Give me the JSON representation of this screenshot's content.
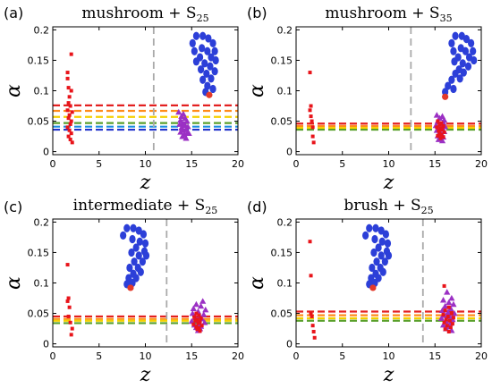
{
  "chart_data": [
    {
      "type": "scatter",
      "panel_label": "(a)",
      "title_main": "mushroom + S",
      "title_sub": "25",
      "xlabel": "z",
      "ylabel": "α",
      "xlim": [
        0,
        20
      ],
      "ylim": [
        -0.005,
        0.205
      ],
      "xticks": [
        0,
        5,
        10,
        15,
        20
      ],
      "yticks": [
        0,
        0.05,
        0.1,
        0.15,
        0.2
      ],
      "vline_x": 10.9,
      "hlines": [
        {
          "y": 0.076,
          "color": "#e32020"
        },
        {
          "y": 0.067,
          "color": "#ff8c1a"
        },
        {
          "y": 0.057,
          "color": "#f5d000"
        },
        {
          "y": 0.047,
          "color": "#5aa02c"
        },
        {
          "y": 0.041,
          "color": "#1e8fe0"
        },
        {
          "y": 0.036,
          "color": "#2233cc"
        }
      ],
      "blue_points": [
        [
          15.5,
          0.19
        ],
        [
          16.2,
          0.19
        ],
        [
          16.8,
          0.186
        ],
        [
          15.1,
          0.178
        ],
        [
          17.3,
          0.178
        ],
        [
          16.1,
          0.17
        ],
        [
          15.3,
          0.165
        ],
        [
          16.7,
          0.165
        ],
        [
          17.5,
          0.165
        ],
        [
          15.9,
          0.155
        ],
        [
          17.1,
          0.155
        ],
        [
          15.5,
          0.148
        ],
        [
          16.4,
          0.145
        ],
        [
          17.6,
          0.15
        ],
        [
          16.0,
          0.135
        ],
        [
          17.0,
          0.14
        ],
        [
          16.6,
          0.128
        ],
        [
          17.5,
          0.132
        ],
        [
          16.2,
          0.118
        ],
        [
          17.1,
          0.12
        ],
        [
          16.7,
          0.108
        ],
        [
          17.3,
          0.103
        ],
        [
          16.5,
          0.098
        ]
      ],
      "red_big_points": [
        [
          16.9,
          0.093
        ]
      ],
      "triangle_points": [
        [
          13.6,
          0.065
        ],
        [
          14.1,
          0.062
        ],
        [
          13.9,
          0.058
        ],
        [
          14.3,
          0.055
        ],
        [
          13.8,
          0.052
        ],
        [
          14.5,
          0.05
        ],
        [
          14.0,
          0.047
        ],
        [
          13.7,
          0.045
        ],
        [
          14.2,
          0.043
        ],
        [
          14.6,
          0.041
        ],
        [
          13.9,
          0.039
        ],
        [
          14.4,
          0.037
        ],
        [
          14.1,
          0.035
        ],
        [
          13.8,
          0.032
        ],
        [
          14.5,
          0.03
        ],
        [
          14.2,
          0.028
        ],
        [
          14.0,
          0.025
        ],
        [
          14.4,
          0.022
        ],
        [
          14.7,
          0.03
        ],
        [
          14.2,
          0.046
        ]
      ],
      "square_points": [
        [
          2.0,
          0.16
        ],
        [
          1.6,
          0.13
        ],
        [
          1.6,
          0.12
        ],
        [
          1.7,
          0.105
        ],
        [
          2.0,
          0.1
        ],
        [
          1.8,
          0.09
        ],
        [
          1.7,
          0.08
        ],
        [
          1.9,
          0.075
        ],
        [
          1.6,
          0.068
        ],
        [
          2.1,
          0.065
        ],
        [
          1.8,
          0.06
        ],
        [
          1.7,
          0.055
        ],
        [
          2.0,
          0.05
        ],
        [
          1.9,
          0.045
        ],
        [
          1.6,
          0.04
        ],
        [
          1.8,
          0.035
        ],
        [
          2.0,
          0.03
        ],
        [
          1.7,
          0.025
        ],
        [
          1.9,
          0.02
        ],
        [
          2.1,
          0.015
        ]
      ]
    },
    {
      "type": "scatter",
      "panel_label": "(b)",
      "title_main": "mushroom + S",
      "title_sub": "35",
      "xlabel": "z",
      "ylabel": "α",
      "xlim": [
        0,
        20
      ],
      "ylim": [
        -0.005,
        0.205
      ],
      "xticks": [
        0,
        5,
        10,
        15,
        20
      ],
      "yticks": [
        0,
        0.05,
        0.1,
        0.15,
        0.2
      ],
      "vline_x": 12.4,
      "hlines": [
        {
          "y": 0.046,
          "color": "#e32020"
        },
        {
          "y": 0.042,
          "color": "#ff8c1a"
        },
        {
          "y": 0.039,
          "color": "#f5d000"
        },
        {
          "y": 0.036,
          "color": "#5aa02c"
        }
      ],
      "blue_points": [
        [
          17.2,
          0.19
        ],
        [
          17.9,
          0.19
        ],
        [
          18.4,
          0.185
        ],
        [
          16.8,
          0.178
        ],
        [
          18.9,
          0.178
        ],
        [
          17.8,
          0.17
        ],
        [
          17.0,
          0.165
        ],
        [
          18.3,
          0.165
        ],
        [
          19.1,
          0.165
        ],
        [
          17.5,
          0.155
        ],
        [
          18.7,
          0.155
        ],
        [
          17.1,
          0.148
        ],
        [
          18.0,
          0.145
        ],
        [
          19.2,
          0.15
        ],
        [
          17.6,
          0.135
        ],
        [
          18.6,
          0.14
        ],
        [
          17.2,
          0.128
        ],
        [
          18.1,
          0.13
        ],
        [
          16.8,
          0.118
        ],
        [
          17.7,
          0.12
        ],
        [
          16.4,
          0.108
        ],
        [
          17.0,
          0.103
        ],
        [
          16.1,
          0.098
        ]
      ],
      "red_big_points": [
        [
          16.1,
          0.09
        ]
      ],
      "triangle_points": [
        [
          15.2,
          0.06
        ],
        [
          15.8,
          0.058
        ],
        [
          15.5,
          0.055
        ],
        [
          16.0,
          0.052
        ],
        [
          15.3,
          0.05
        ],
        [
          15.9,
          0.048
        ],
        [
          15.6,
          0.045
        ],
        [
          15.1,
          0.043
        ],
        [
          16.1,
          0.041
        ],
        [
          15.4,
          0.039
        ],
        [
          15.8,
          0.037
        ],
        [
          15.2,
          0.035
        ],
        [
          16.0,
          0.033
        ],
        [
          15.5,
          0.031
        ],
        [
          15.7,
          0.028
        ],
        [
          15.3,
          0.026
        ],
        [
          15.9,
          0.024
        ],
        [
          15.6,
          0.022
        ],
        [
          15.4,
          0.02
        ],
        [
          15.8,
          0.018
        ]
      ],
      "square_points": [
        [
          15.3,
          0.05
        ],
        [
          15.7,
          0.047
        ],
        [
          15.5,
          0.044
        ],
        [
          15.9,
          0.042
        ],
        [
          15.2,
          0.04
        ],
        [
          15.6,
          0.038
        ],
        [
          15.8,
          0.036
        ],
        [
          15.4,
          0.034
        ],
        [
          16.0,
          0.032
        ],
        [
          15.5,
          0.03
        ],
        [
          15.7,
          0.028
        ],
        [
          15.3,
          0.026
        ],
        [
          15.9,
          0.024
        ],
        [
          15.6,
          0.022
        ],
        [
          1.5,
          0.13
        ],
        [
          1.6,
          0.075
        ],
        [
          1.5,
          0.068
        ],
        [
          1.6,
          0.058
        ],
        [
          1.7,
          0.05
        ],
        [
          1.8,
          0.04
        ],
        [
          1.8,
          0.025
        ],
        [
          1.9,
          0.015
        ]
      ]
    },
    {
      "type": "scatter",
      "panel_label": "(c)",
      "title_main": "intermediate + S",
      "title_sub": "25",
      "xlabel": "z",
      "ylabel": "α",
      "xlim": [
        0,
        20
      ],
      "ylim": [
        -0.005,
        0.205
      ],
      "xticks": [
        0,
        5,
        10,
        15,
        20
      ],
      "yticks": [
        0,
        0.05,
        0.1,
        0.15,
        0.2
      ],
      "vline_x": 12.3,
      "hlines": [
        {
          "y": 0.045,
          "color": "#e32020"
        },
        {
          "y": 0.041,
          "color": "#ff8c1a"
        },
        {
          "y": 0.038,
          "color": "#f5d000"
        },
        {
          "y": 0.034,
          "color": "#5aa02c"
        }
      ],
      "blue_points": [
        [
          8.0,
          0.19
        ],
        [
          8.7,
          0.19
        ],
        [
          9.3,
          0.186
        ],
        [
          7.6,
          0.178
        ],
        [
          9.8,
          0.18
        ],
        [
          8.6,
          0.172
        ],
        [
          9.4,
          0.168
        ],
        [
          10.0,
          0.165
        ],
        [
          9.0,
          0.158
        ],
        [
          9.9,
          0.152
        ],
        [
          8.5,
          0.15
        ],
        [
          9.3,
          0.145
        ],
        [
          10.1,
          0.145
        ],
        [
          8.8,
          0.135
        ],
        [
          9.7,
          0.135
        ],
        [
          8.3,
          0.125
        ],
        [
          9.2,
          0.125
        ],
        [
          8.7,
          0.115
        ],
        [
          9.5,
          0.118
        ],
        [
          8.2,
          0.108
        ],
        [
          9.0,
          0.108
        ],
        [
          8.6,
          0.1
        ],
        [
          8.0,
          0.098
        ]
      ],
      "red_big_points": [
        [
          8.4,
          0.092
        ]
      ],
      "triangle_points": [
        [
          16.2,
          0.07
        ],
        [
          15.5,
          0.065
        ],
        [
          16.0,
          0.062
        ],
        [
          15.2,
          0.058
        ],
        [
          16.5,
          0.056
        ],
        [
          15.7,
          0.053
        ],
        [
          15.1,
          0.05
        ],
        [
          16.3,
          0.048
        ],
        [
          15.9,
          0.045
        ],
        [
          15.4,
          0.043
        ],
        [
          16.1,
          0.041
        ],
        [
          15.6,
          0.039
        ],
        [
          15.0,
          0.037
        ],
        [
          16.4,
          0.035
        ],
        [
          15.8,
          0.033
        ],
        [
          15.3,
          0.031
        ],
        [
          16.0,
          0.029
        ],
        [
          15.5,
          0.027
        ],
        [
          15.9,
          0.025
        ],
        [
          15.7,
          0.022
        ]
      ],
      "square_points": [
        [
          15.5,
          0.05
        ],
        [
          15.8,
          0.047
        ],
        [
          15.3,
          0.044
        ],
        [
          16.0,
          0.042
        ],
        [
          15.6,
          0.04
        ],
        [
          15.4,
          0.038
        ],
        [
          15.9,
          0.036
        ],
        [
          15.7,
          0.034
        ],
        [
          15.2,
          0.032
        ],
        [
          16.1,
          0.03
        ],
        [
          15.5,
          0.028
        ],
        [
          15.8,
          0.026
        ],
        [
          15.6,
          0.024
        ],
        [
          15.9,
          0.021
        ],
        [
          1.6,
          0.13
        ],
        [
          1.7,
          0.075
        ],
        [
          1.6,
          0.07
        ],
        [
          1.8,
          0.06
        ],
        [
          1.7,
          0.045
        ],
        [
          1.9,
          0.035
        ],
        [
          2.1,
          0.025
        ],
        [
          2.0,
          0.015
        ]
      ]
    },
    {
      "type": "scatter",
      "panel_label": "(d)",
      "title_main": "brush + S",
      "title_sub": "25",
      "xlabel": "z",
      "ylabel": "α",
      "xlim": [
        0,
        20
      ],
      "ylim": [
        -0.005,
        0.205
      ],
      "xticks": [
        0,
        5,
        10,
        15,
        20
      ],
      "yticks": [
        0,
        0.05,
        0.1,
        0.15,
        0.2
      ],
      "vline_x": 13.7,
      "hlines": [
        {
          "y": 0.053,
          "color": "#e32020"
        },
        {
          "y": 0.047,
          "color": "#ff8c1a"
        },
        {
          "y": 0.042,
          "color": "#f5d000"
        },
        {
          "y": 0.038,
          "color": "#5aa02c"
        }
      ],
      "blue_points": [
        [
          7.9,
          0.19
        ],
        [
          8.6,
          0.19
        ],
        [
          9.2,
          0.186
        ],
        [
          7.5,
          0.178
        ],
        [
          9.7,
          0.18
        ],
        [
          8.5,
          0.172
        ],
        [
          9.3,
          0.168
        ],
        [
          9.9,
          0.165
        ],
        [
          8.9,
          0.158
        ],
        [
          9.8,
          0.152
        ],
        [
          8.4,
          0.15
        ],
        [
          9.2,
          0.145
        ],
        [
          10.0,
          0.145
        ],
        [
          8.7,
          0.135
        ],
        [
          9.6,
          0.135
        ],
        [
          8.2,
          0.125
        ],
        [
          9.1,
          0.125
        ],
        [
          8.6,
          0.115
        ],
        [
          9.4,
          0.118
        ],
        [
          8.1,
          0.108
        ],
        [
          8.9,
          0.108
        ],
        [
          8.5,
          0.1
        ],
        [
          7.9,
          0.098
        ]
      ],
      "red_big_points": [
        [
          8.3,
          0.092
        ]
      ],
      "triangle_points": [
        [
          16.3,
          0.085
        ],
        [
          16.8,
          0.075
        ],
        [
          15.9,
          0.072
        ],
        [
          16.5,
          0.068
        ],
        [
          17.0,
          0.065
        ],
        [
          16.1,
          0.062
        ],
        [
          16.7,
          0.058
        ],
        [
          15.8,
          0.055
        ],
        [
          16.4,
          0.052
        ],
        [
          17.1,
          0.05
        ],
        [
          16.0,
          0.047
        ],
        [
          16.6,
          0.045
        ],
        [
          15.7,
          0.042
        ],
        [
          16.9,
          0.04
        ],
        [
          16.2,
          0.037
        ],
        [
          16.7,
          0.034
        ],
        [
          15.9,
          0.031
        ],
        [
          16.5,
          0.028
        ],
        [
          16.2,
          0.025
        ],
        [
          16.8,
          0.022
        ]
      ],
      "square_points": [
        [
          16.0,
          0.095
        ],
        [
          16.5,
          0.06
        ],
        [
          16.1,
          0.055
        ],
        [
          16.8,
          0.05
        ],
        [
          15.9,
          0.048
        ],
        [
          16.4,
          0.045
        ],
        [
          17.0,
          0.043
        ],
        [
          16.2,
          0.04
        ],
        [
          16.6,
          0.038
        ],
        [
          16.0,
          0.035
        ],
        [
          16.9,
          0.033
        ],
        [
          16.3,
          0.03
        ],
        [
          16.7,
          0.027
        ],
        [
          16.1,
          0.024
        ],
        [
          16.5,
          0.02
        ],
        [
          1.5,
          0.168
        ],
        [
          1.6,
          0.112
        ],
        [
          1.6,
          0.05
        ],
        [
          1.7,
          0.045
        ],
        [
          1.8,
          0.03
        ],
        [
          1.9,
          0.02
        ],
        [
          2.0,
          0.01
        ]
      ]
    }
  ]
}
